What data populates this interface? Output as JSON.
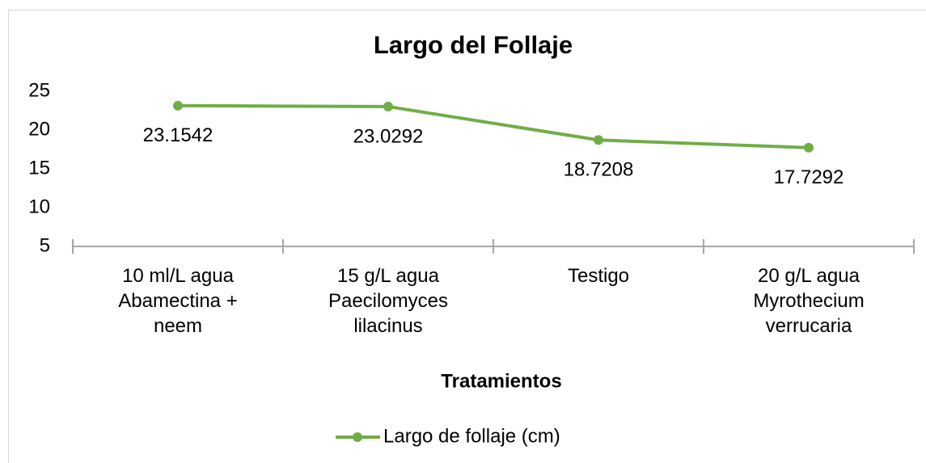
{
  "chart_data": {
    "type": "line",
    "title": "Largo del Follaje",
    "x_label": "Tratamientos",
    "categories": [
      "10 ml/L agua Abamectina + neem",
      "15 g/L agua Paecilomyces lilacinus",
      "Testigo",
      "20 g/L agua Myrothecium verrucaria"
    ],
    "series": [
      {
        "name": "Largo de follaje (cm)",
        "color": "#70ad47",
        "values": [
          23.1542,
          23.0292,
          18.7208,
          17.7292
        ]
      }
    ],
    "ylim": [
      5,
      25
    ],
    "yticks": [
      5,
      10,
      15,
      20,
      25
    ],
    "grid": false,
    "legend": "bottom"
  }
}
